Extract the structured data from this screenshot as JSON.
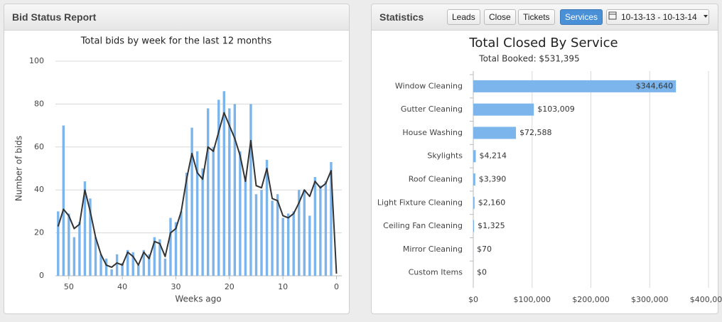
{
  "panels": [
    {
      "title": "Bid Status Report"
    },
    {
      "title": "Statistics",
      "buttons": [
        "Leads",
        "Close",
        "Tickets",
        "Services"
      ],
      "active_button": 3,
      "date_range": "10-13-13 - 10-13-14"
    }
  ],
  "chart_data": [
    {
      "type": "bar",
      "title": "Total bids by week for the last 12 months",
      "x_label": "Weeks ago",
      "y_label": "Number of bids",
      "x": [
        52,
        51,
        50,
        49,
        48,
        47,
        46,
        45,
        44,
        43,
        42,
        41,
        40,
        39,
        38,
        37,
        36,
        35,
        34,
        33,
        32,
        31,
        30,
        29,
        28,
        27,
        26,
        25,
        24,
        23,
        22,
        21,
        20,
        19,
        18,
        17,
        16,
        15,
        14,
        13,
        12,
        11,
        10,
        9,
        8,
        7,
        6,
        5,
        4,
        3,
        2,
        1,
        0
      ],
      "series": [
        {
          "type": "bar",
          "color": "#7cb5ec",
          "values": [
            30,
            70,
            29,
            18,
            25,
            44,
            36,
            18,
            10,
            8,
            3,
            10,
            6,
            12,
            11,
            5,
            12,
            10,
            18,
            17,
            8,
            27,
            25,
            30,
            48,
            69,
            58,
            50,
            78,
            60,
            82,
            86,
            78,
            80,
            58,
            45,
            80,
            38,
            40,
            54,
            35,
            38,
            27,
            29,
            30,
            40,
            40,
            28,
            46,
            42,
            44,
            53,
            0
          ]
        },
        {
          "type": "line",
          "color": "#333333",
          "values": [
            23,
            31,
            28,
            22,
            24,
            40,
            30,
            18,
            10,
            5,
            4,
            6,
            5,
            11,
            9,
            5,
            11,
            8,
            16,
            15,
            9,
            20,
            22,
            30,
            45,
            57,
            48,
            45,
            60,
            58,
            67,
            76,
            70,
            64,
            56,
            44,
            63,
            42,
            41,
            50,
            36,
            35,
            28,
            27,
            29,
            34,
            40,
            37,
            44,
            41,
            43,
            49,
            1
          ]
        }
      ],
      "xlim": [
        52.5,
        -1
      ],
      "xticks": [
        50,
        40,
        30,
        20,
        10,
        0
      ],
      "ylim": [
        0,
        100
      ],
      "yticks": [
        0,
        20,
        40,
        60,
        80,
        100
      ],
      "grid": true
    },
    {
      "type": "bar",
      "orientation": "horizontal",
      "title": "Total Closed By Service",
      "subtitle": "Total Booked: $531,395",
      "categories": [
        "Window Cleaning",
        "Gutter Cleaning",
        "House Washing",
        "Skylights",
        "Roof Cleaning",
        "Light Fixture Cleaning",
        "Ceiling Fan Cleaning",
        "Mirror Cleaning",
        "Custom Items"
      ],
      "values": [
        344640,
        103009,
        72588,
        4214,
        3390,
        2160,
        1325,
        70,
        0
      ],
      "value_labels": [
        "$344,640",
        "$103,009",
        "$72,588",
        "$4,214",
        "$3,390",
        "$2,160",
        "$1,325",
        "$70",
        "$0"
      ],
      "color": "#7cb5ec",
      "xlim": [
        0,
        400000
      ],
      "xticks": [
        {
          "value": 0,
          "label": "$0"
        },
        {
          "value": 100000,
          "label": "$100,000"
        },
        {
          "value": 200000,
          "label": "$200,000"
        },
        {
          "value": 300000,
          "label": "$300,000"
        },
        {
          "value": 400000,
          "label": "$400,000"
        }
      ],
      "grid": true
    }
  ]
}
